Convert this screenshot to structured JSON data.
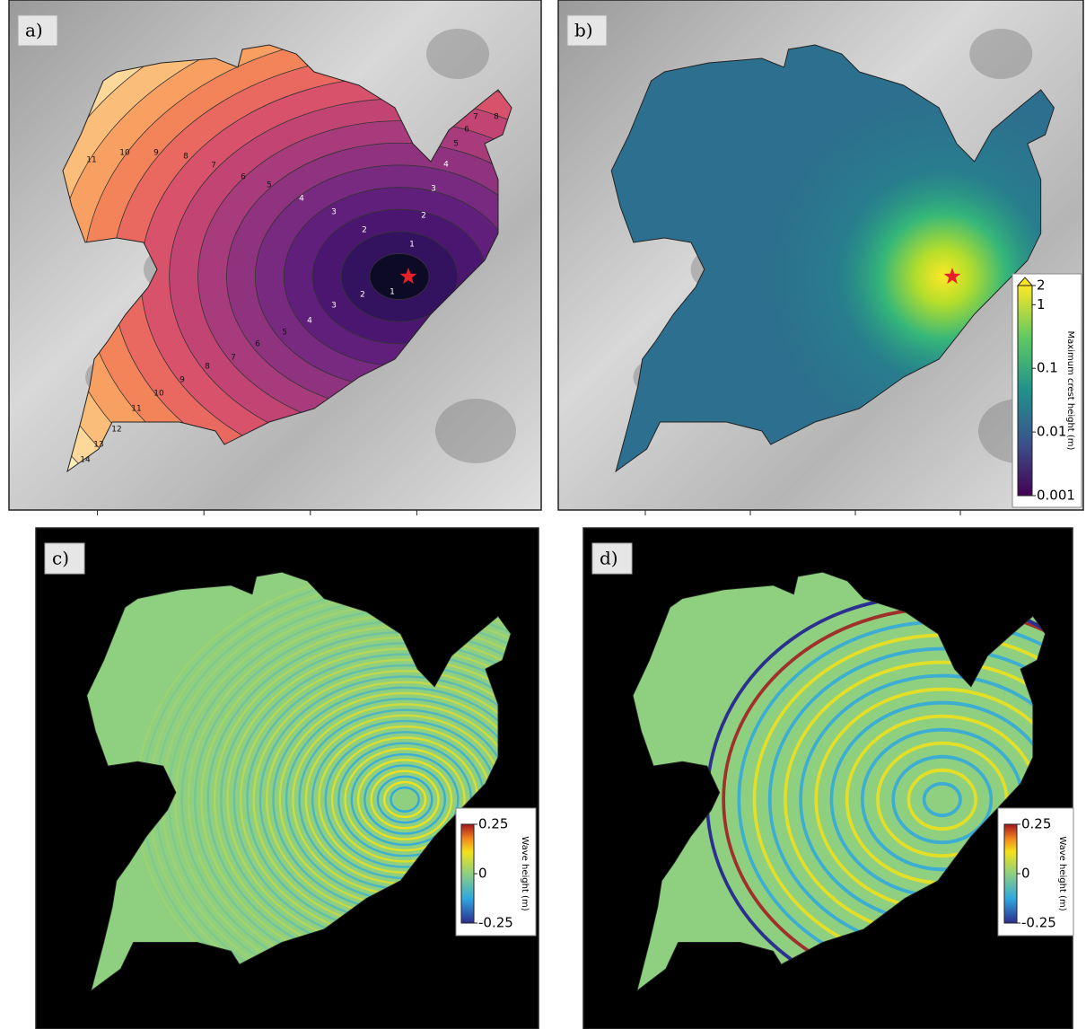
{
  "panels": [
    {
      "label": "a)",
      "contour_labels": [
        1,
        1,
        2,
        2,
        2,
        3,
        3,
        3,
        4,
        4,
        4,
        5,
        5,
        5,
        6,
        6,
        6,
        7,
        7,
        7,
        8,
        8,
        8,
        9,
        9,
        10,
        10,
        11,
        11,
        12,
        13,
        14
      ]
    },
    {
      "label": "b)",
      "colorbar": {
        "title": "Maximum crest height (m)",
        "lim": [
          0.001,
          2
        ],
        "ticks": [
          2,
          1,
          0.1,
          0.01,
          0.001
        ],
        "log_scale": true
      }
    },
    {
      "label": "c)",
      "colorbar": {
        "title": "Wave height (m)",
        "lim": [
          -0.25,
          0.25
        ],
        "ticks": [
          0.25,
          0,
          -0.25
        ]
      }
    },
    {
      "label": "d)",
      "colorbar": {
        "title": "Wave height (m)",
        "lim": [
          -0.25,
          0.25
        ],
        "ticks": [
          0.25,
          0,
          -0.25
        ]
      }
    }
  ]
}
